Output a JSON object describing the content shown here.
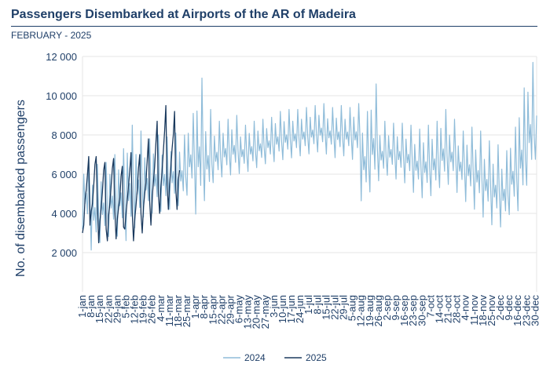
{
  "header": {
    "title": "Passengers Disembarked at Airports of the AR of Madeira",
    "subtitle": "FEBRUARY - 2025"
  },
  "colors": {
    "series_2024": "#8fbcd9",
    "series_2025": "#1b3a5e",
    "text": "#1f3f68",
    "grid": "#e6e6e6"
  },
  "chart_data": {
    "type": "line",
    "ylabel": "No. of disembarked passengers",
    "ylim": [
      0,
      12000
    ],
    "y_ticks": [
      2000,
      4000,
      6000,
      8000,
      10000,
      12000
    ],
    "y_tick_labels": [
      "2 000",
      "4 000",
      "6 000",
      "8 000",
      "10 000",
      "12 000"
    ],
    "x_tick_labels": [
      "1-jan",
      "8-jan",
      "15-jan",
      "22-jan",
      "29-jan",
      "5-feb",
      "12-feb",
      "19-feb",
      "26-feb",
      "4-mar",
      "11-mar",
      "18-mar",
      "25-mar",
      "1-apr",
      "8-apr",
      "15-apr",
      "22-apr",
      "29-apr",
      "6-may",
      "13-may",
      "20-may",
      "27-may",
      "3-jun",
      "10-jun",
      "17-jun",
      "24-jun",
      "1-jul",
      "8-jul",
      "15-jul",
      "22-jul",
      "29-jul",
      "5-aug",
      "12-aug",
      "19-aug",
      "26-aug",
      "2-sep",
      "9-sep",
      "16-sep",
      "23-sep",
      "30-sep",
      "7-oct",
      "14-oct",
      "21-oct",
      "28-oct",
      "4-nov",
      "11-nov",
      "18-nov",
      "25-nov",
      "2-dec",
      "9-dec",
      "16-dec",
      "23-dec",
      "30-dec"
    ],
    "x_days": 366,
    "legend_position": "bottom",
    "series": [
      {
        "name": "2024",
        "weekly_peaks": [
          6900,
          6500,
          6600,
          7000,
          7300,
          8500,
          8200,
          7800,
          8000,
          7900,
          8100,
          8000,
          9100,
          10900,
          9300,
          8700,
          8800,
          9000,
          8500,
          8700,
          8800,
          8900,
          9200,
          9300,
          9300,
          9400,
          9500,
          9600,
          9400,
          9500,
          9400,
          9600,
          9200,
          10600,
          8700,
          8600,
          8600,
          8500,
          8300,
          8500,
          8700,
          9300,
          8800,
          8200,
          8400,
          8200,
          7700,
          7500,
          7200,
          8400,
          10400,
          11700,
          9700
        ],
        "weekly_troughs": [
          3000,
          1900,
          2300,
          2600,
          2600,
          2300,
          3000,
          3600,
          3800,
          3900,
          4000,
          4200,
          4700,
          3600,
          4400,
          5400,
          5700,
          5800,
          5900,
          6000,
          6200,
          6400,
          6500,
          6600,
          6700,
          6800,
          6900,
          7000,
          6900,
          6700,
          6800,
          6600,
          4400,
          4800,
          5500,
          5800,
          5600,
          5400,
          4900,
          4600,
          4700,
          5100,
          5300,
          4900,
          4400,
          4000,
          3600,
          3200,
          3100,
          3700,
          3800,
          5100,
          6600
        ]
      },
      {
        "name": "2025",
        "daily": [
          3000,
          3400,
          4700,
          5200,
          6000,
          6900,
          3400,
          4100,
          4500,
          5400,
          6500,
          6900,
          4400,
          2500,
          3600,
          4300,
          5100,
          6200,
          6600,
          3200,
          2600,
          3900,
          4500,
          5400,
          6300,
          6800,
          4100,
          2700,
          3700,
          4300,
          4800,
          5900,
          6400,
          3300,
          3200,
          4000,
          4700,
          5400,
          6200,
          7100,
          4000,
          2600,
          3700,
          4400,
          5200,
          6300,
          7000,
          4000,
          3000,
          4300,
          5000,
          5600,
          6700,
          7800,
          4600,
          3400,
          4800,
          5600,
          6400,
          7600,
          8700,
          5000,
          4000,
          5300,
          6200,
          7200,
          8200,
          9500,
          5500,
          4200,
          5500,
          6300,
          7300,
          8000,
          9200,
          5200,
          4200,
          5700,
          6200
        ]
      }
    ]
  }
}
